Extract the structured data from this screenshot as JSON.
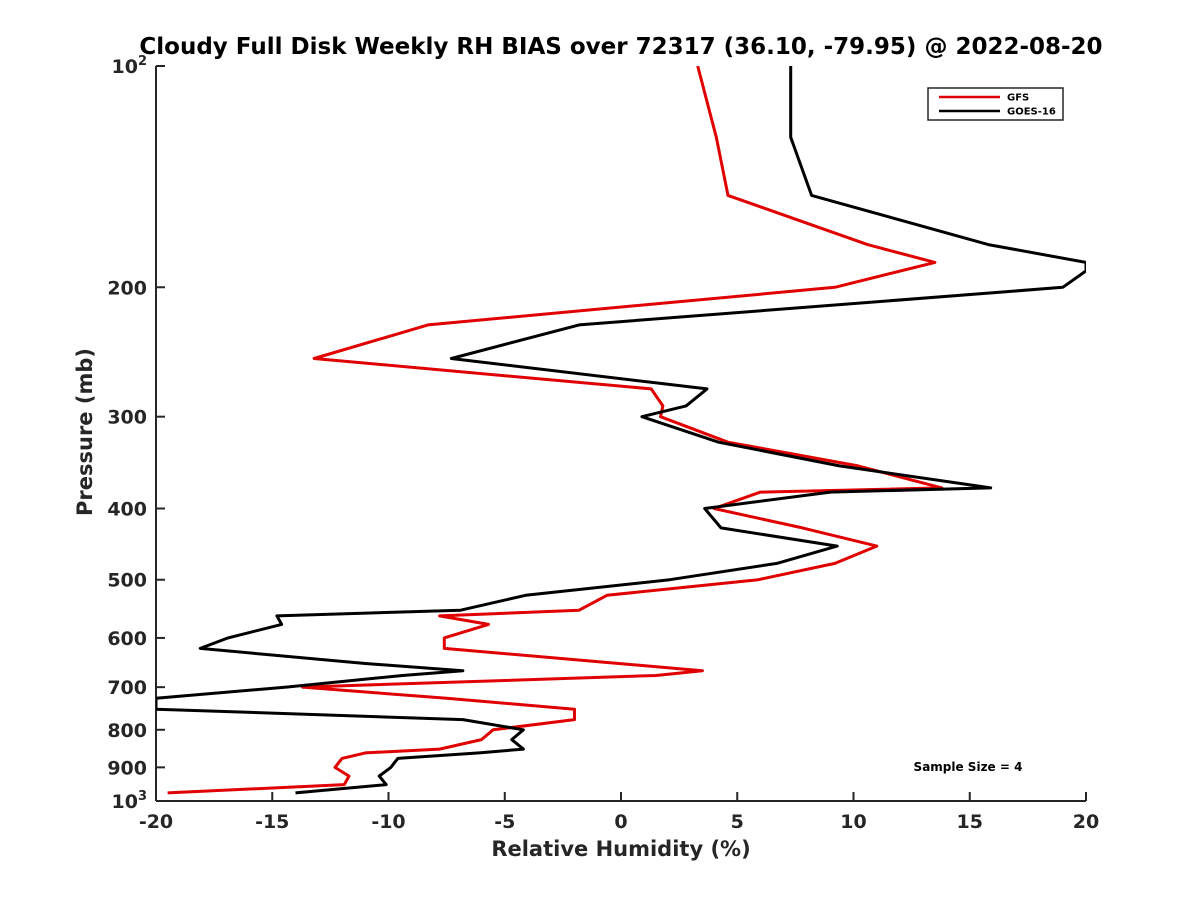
{
  "chart_data": {
    "type": "line",
    "title": "Cloudy Full Disk Weekly RH BIAS over 72317 (36.10, -79.95) @ 2022-08-20",
    "xlabel": "Relative Humidity (%)",
    "ylabel": "Pressure (mb)",
    "xlim": [
      -20,
      20
    ],
    "ylim": [
      100,
      1000
    ],
    "y_scale": "log",
    "y_reversed": true,
    "grid": false,
    "legend_position": "top-right",
    "x_ticks": [
      "-20",
      "-15",
      "-10",
      "-5",
      "0",
      "5",
      "10",
      "15",
      "20"
    ],
    "y_ticks": [
      {
        "value": 100,
        "base": "10",
        "exp": "2"
      },
      {
        "value": 200,
        "label": "200"
      },
      {
        "value": 300,
        "label": "300"
      },
      {
        "value": 400,
        "label": "400"
      },
      {
        "value": 500,
        "label": "500"
      },
      {
        "value": 600,
        "label": "600"
      },
      {
        "value": 700,
        "label": "700"
      },
      {
        "value": 800,
        "label": "800"
      },
      {
        "value": 900,
        "label": "900"
      },
      {
        "value": 1000,
        "base": "10",
        "exp": "3"
      }
    ],
    "series": [
      {
        "name": "GFS",
        "color": "#e00000",
        "points": [
          [
            3.3,
            100
          ],
          [
            4.1,
            125
          ],
          [
            4.6,
            150
          ],
          [
            10.6,
            175
          ],
          [
            13.5,
            185
          ],
          [
            9.2,
            200
          ],
          [
            -8.3,
            225
          ],
          [
            -13.2,
            250
          ],
          [
            1.3,
            275
          ],
          [
            1.8,
            290
          ],
          [
            1.7,
            300
          ],
          [
            4.6,
            325
          ],
          [
            10.2,
            350
          ],
          [
            13.8,
            375
          ],
          [
            6.0,
            380
          ],
          [
            4.0,
            400
          ],
          [
            7.8,
            425
          ],
          [
            11.0,
            450
          ],
          [
            9.2,
            475
          ],
          [
            5.9,
            500
          ],
          [
            -0.6,
            525
          ],
          [
            -1.8,
            550
          ],
          [
            -7.8,
            560
          ],
          [
            -5.7,
            575
          ],
          [
            -7.6,
            600
          ],
          [
            -7.6,
            620
          ],
          [
            -0.1,
            650
          ],
          [
            3.5,
            665
          ],
          [
            1.5,
            675
          ],
          [
            -13.7,
            700
          ],
          [
            -7.5,
            725
          ],
          [
            -2.0,
            750
          ],
          [
            -2.0,
            775
          ],
          [
            -5.5,
            800
          ],
          [
            -6.0,
            825
          ],
          [
            -7.8,
            850
          ],
          [
            -11.0,
            860
          ],
          [
            -12.0,
            875
          ],
          [
            -12.3,
            900
          ],
          [
            -11.7,
            925
          ],
          [
            -11.9,
            950
          ],
          [
            -19.5,
            975
          ]
        ]
      },
      {
        "name": "GOES-16",
        "color": "#000000",
        "points": [
          [
            7.3,
            100
          ],
          [
            7.3,
            125
          ],
          [
            8.2,
            150
          ],
          [
            15.8,
            175
          ],
          [
            20.0,
            185
          ],
          [
            20.0,
            190
          ],
          [
            19.0,
            200
          ],
          [
            -1.8,
            225
          ],
          [
            -7.3,
            250
          ],
          [
            3.7,
            275
          ],
          [
            2.8,
            290
          ],
          [
            0.9,
            300
          ],
          [
            4.2,
            325
          ],
          [
            9.4,
            350
          ],
          [
            15.9,
            375
          ],
          [
            9.0,
            380
          ],
          [
            3.6,
            400
          ],
          [
            4.3,
            425
          ],
          [
            9.3,
            450
          ],
          [
            6.7,
            475
          ],
          [
            2.1,
            500
          ],
          [
            -4.1,
            525
          ],
          [
            -6.9,
            550
          ],
          [
            -14.8,
            560
          ],
          [
            -14.6,
            575
          ],
          [
            -16.9,
            600
          ],
          [
            -18.1,
            620
          ],
          [
            -11.0,
            650
          ],
          [
            -6.8,
            665
          ],
          [
            -9.4,
            675
          ],
          [
            -14.4,
            700
          ],
          [
            -20.0,
            725
          ],
          [
            -20.0,
            750
          ],
          [
            -6.8,
            775
          ],
          [
            -4.2,
            800
          ],
          [
            -4.7,
            825
          ],
          [
            -4.2,
            850
          ],
          [
            -6.1,
            860
          ],
          [
            -9.6,
            875
          ],
          [
            -9.9,
            900
          ],
          [
            -10.4,
            925
          ],
          [
            -10.1,
            950
          ],
          [
            -14.0,
            975
          ]
        ]
      }
    ],
    "annotations": [
      "Sample Size = 4"
    ]
  }
}
